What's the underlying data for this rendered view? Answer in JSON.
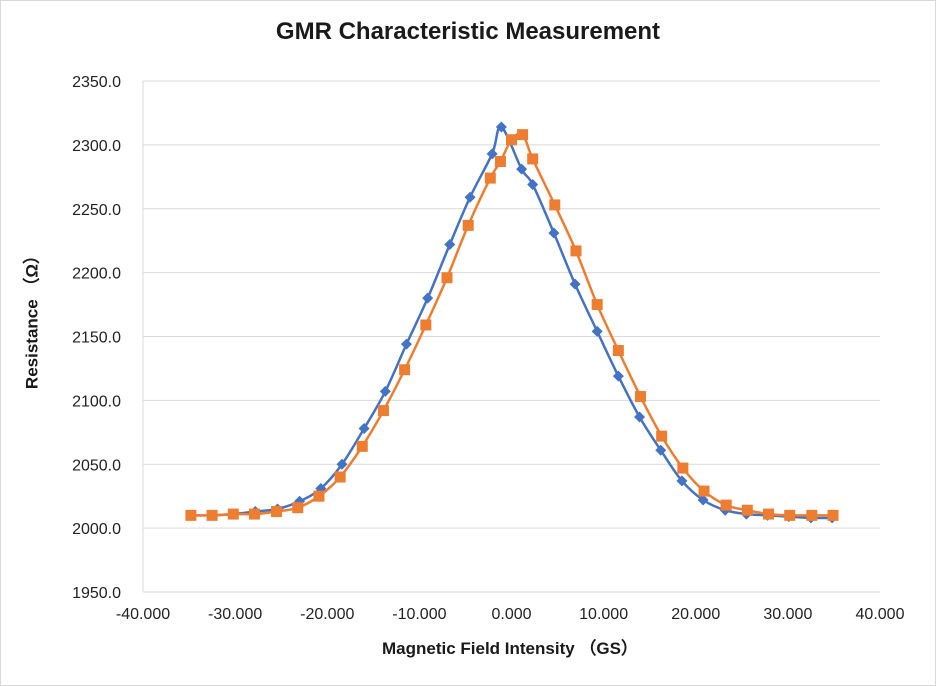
{
  "chart_data": {
    "type": "line",
    "title": "GMR Characteristic Measurement",
    "xlabel": "Magnetic Field Intensity （GS）",
    "ylabel": "Resistance （Ω）",
    "xlim": [
      -40,
      40
    ],
    "ylim": [
      1950,
      2350
    ],
    "xticks": [
      "-40.000",
      "-30.000",
      "-20.000",
      "-10.000",
      "0.000",
      "10.000",
      "20.000",
      "30.000",
      "40.000"
    ],
    "yticks": [
      "1950.0",
      "2000.0",
      "2050.0",
      "2100.0",
      "2150.0",
      "2200.0",
      "2250.0",
      "2300.0",
      "2350.0"
    ],
    "grid": "horizontal",
    "legend": "none",
    "series": [
      {
        "color": "#4472c4",
        "marker": "diamond",
        "x": [
          -34.8,
          -32.6,
          -30.2,
          -27.8,
          -25.4,
          -23.0,
          -20.7,
          -18.4,
          -16.0,
          -13.7,
          -11.4,
          -9.1,
          -6.7,
          -4.5,
          -2.1,
          -1.1,
          1.1,
          2.3,
          4.6,
          6.9,
          9.3,
          11.6,
          13.9,
          16.2,
          18.5,
          20.8,
          23.2,
          25.5,
          27.8,
          30.1,
          32.5,
          34.8
        ],
        "y": [
          2010,
          2010,
          2011,
          2013,
          2015,
          2021,
          2031,
          2050,
          2078,
          2107,
          2144,
          2180,
          2222,
          2259,
          2293,
          2314,
          2281,
          2269,
          2231,
          2191,
          2154,
          2119,
          2087,
          2061,
          2037,
          2022,
          2014,
          2011,
          2010,
          2009,
          2008,
          2008
        ]
      },
      {
        "color": "#ed7d31",
        "marker": "square",
        "x": [
          -34.8,
          -32.5,
          -30.2,
          -27.9,
          -25.5,
          -23.2,
          -20.9,
          -18.6,
          -16.2,
          -13.9,
          -11.6,
          -9.3,
          -7.0,
          -4.7,
          -2.3,
          -1.2,
          0.0,
          1.2,
          2.3,
          4.7,
          7.0,
          9.3,
          11.6,
          14.0,
          16.3,
          18.6,
          20.9,
          23.3,
          25.6,
          27.9,
          30.2,
          32.6,
          34.9
        ],
        "y": [
          2010,
          2010,
          2011,
          2011,
          2013,
          2016,
          2025,
          2040,
          2064,
          2092,
          2124,
          2159,
          2196,
          2237,
          2274,
          2287,
          2304,
          2308,
          2289,
          2253,
          2217,
          2175,
          2139,
          2103,
          2072,
          2047,
          2029,
          2018,
          2014,
          2011,
          2010,
          2010,
          2010
        ]
      }
    ]
  }
}
